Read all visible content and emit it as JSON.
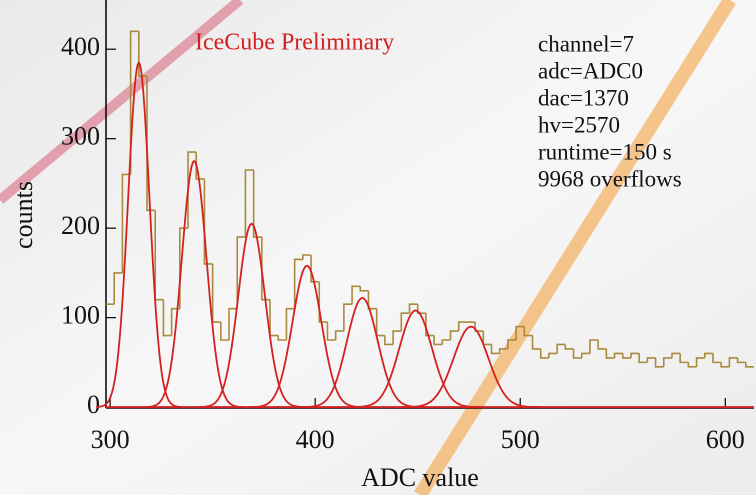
{
  "chart_data": {
    "type": "histogram",
    "title": "IceCube Preliminary",
    "x_label": "ADC value",
    "y_label": "counts",
    "annotations": [
      "channel=7",
      "adc=ADC0",
      "dac=1370",
      "hv=2570",
      "runtime=150 s",
      "9968 overflows"
    ],
    "xlim": [
      298,
      614
    ],
    "ylim": [
      -1,
      455
    ],
    "xticks": [
      300,
      400,
      500,
      600
    ],
    "yticks": [
      0,
      100,
      200,
      300,
      400
    ],
    "color": "#a88a3c",
    "fit_color": "#d42020",
    "bins": [
      298,
      302,
      306,
      310,
      314,
      318,
      322,
      326,
      330,
      334,
      338,
      342,
      346,
      350,
      354,
      358,
      362,
      366,
      370,
      374,
      378,
      382,
      386,
      390,
      394,
      398,
      402,
      406,
      410,
      414,
      418,
      422,
      426,
      430,
      434,
      438,
      442,
      446,
      450,
      454,
      458,
      462,
      466,
      470,
      474,
      478,
      482,
      486,
      490,
      494,
      498,
      502,
      506,
      510,
      514,
      518,
      522,
      526,
      530,
      534,
      538,
      542,
      546,
      550,
      554,
      558,
      562,
      566,
      570,
      574,
      578,
      582,
      586,
      590,
      594,
      598,
      602,
      606,
      610,
      614
    ],
    "values": [
      115,
      150,
      260,
      420,
      370,
      220,
      120,
      80,
      110,
      200,
      285,
      255,
      160,
      95,
      75,
      110,
      190,
      265,
      190,
      120,
      80,
      75,
      110,
      165,
      170,
      140,
      95,
      75,
      85,
      115,
      135,
      130,
      110,
      80,
      70,
      85,
      105,
      115,
      105,
      80,
      70,
      75,
      85,
      95,
      95,
      85,
      70,
      60,
      65,
      75,
      90,
      80,
      65,
      55,
      60,
      70,
      65,
      55,
      60,
      75,
      65,
      55,
      60,
      55,
      60,
      50,
      55,
      45,
      55,
      60,
      50,
      45,
      55,
      60,
      50,
      45,
      55,
      50,
      45
    ],
    "fits": [
      {
        "mean": 314,
        "sigma": 5.2,
        "amplitude": 385
      },
      {
        "mean": 341,
        "sigma": 6,
        "amplitude": 275
      },
      {
        "mean": 369,
        "sigma": 6.5,
        "amplitude": 205
      },
      {
        "mean": 396,
        "sigma": 7,
        "amplitude": 158
      },
      {
        "mean": 423,
        "sigma": 7.5,
        "amplitude": 122
      },
      {
        "mean": 449,
        "sigma": 8,
        "amplitude": 108
      },
      {
        "mean": 476,
        "sigma": 8.5,
        "amplitude": 90
      }
    ]
  }
}
